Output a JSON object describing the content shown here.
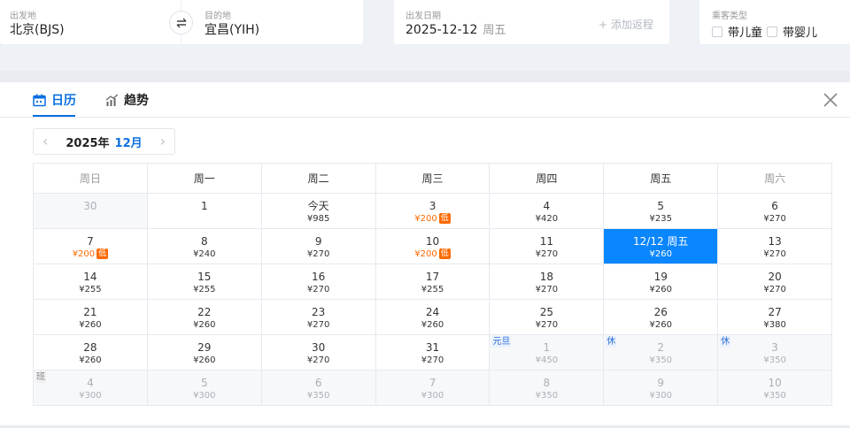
{
  "search": {
    "from_label": "出发地",
    "from_value": "北京(BJS)",
    "to_label": "目的地",
    "to_value": "宜昌(YIH)",
    "date_label": "出发日期",
    "date_value": "2025-12-12",
    "date_weekday": "周五",
    "add_return": "+ 添加返程",
    "passenger_label": "乘客类型",
    "with_child": "带儿童",
    "with_infant": "带婴儿"
  },
  "tabs": {
    "calendar": "日历",
    "trend": "趋势"
  },
  "month_nav": {
    "year": "2025年",
    "month": "12月",
    "prev": "‹",
    "next": "›"
  },
  "weekdays": [
    "周日",
    "周一",
    "周二",
    "周三",
    "周四",
    "周五",
    "周六"
  ],
  "weeks": [
    [
      {
        "day": "30",
        "price": "",
        "other": true
      },
      {
        "day": "1",
        "price": ""
      },
      {
        "day": "今天",
        "price": "¥985"
      },
      {
        "day": "3",
        "price": "¥200",
        "low": true
      },
      {
        "day": "4",
        "price": "¥420"
      },
      {
        "day": "5",
        "price": "¥235"
      },
      {
        "day": "6",
        "price": "¥270"
      }
    ],
    [
      {
        "day": "7",
        "price": "¥200",
        "low": true
      },
      {
        "day": "8",
        "price": "¥240"
      },
      {
        "day": "9",
        "price": "¥270"
      },
      {
        "day": "10",
        "price": "¥200",
        "low": true
      },
      {
        "day": "11",
        "price": "¥270"
      },
      {
        "day": "12/12 周五",
        "price": "¥260",
        "selected": true
      },
      {
        "day": "13",
        "price": "¥270"
      }
    ],
    [
      {
        "day": "14",
        "price": "¥255"
      },
      {
        "day": "15",
        "price": "¥255"
      },
      {
        "day": "16",
        "price": "¥270"
      },
      {
        "day": "17",
        "price": "¥255"
      },
      {
        "day": "18",
        "price": "¥270"
      },
      {
        "day": "19",
        "price": "¥260"
      },
      {
        "day": "20",
        "price": "¥270"
      }
    ],
    [
      {
        "day": "21",
        "price": "¥260"
      },
      {
        "day": "22",
        "price": "¥260"
      },
      {
        "day": "23",
        "price": "¥270"
      },
      {
        "day": "24",
        "price": "¥260"
      },
      {
        "day": "25",
        "price": "¥270"
      },
      {
        "day": "26",
        "price": "¥260"
      },
      {
        "day": "27",
        "price": "¥380"
      }
    ],
    [
      {
        "day": "28",
        "price": "¥260"
      },
      {
        "day": "29",
        "price": "¥260"
      },
      {
        "day": "30",
        "price": "¥270"
      },
      {
        "day": "31",
        "price": "¥270"
      },
      {
        "day": "1",
        "price": "¥450",
        "other": true,
        "tag": "元旦",
        "tagType": "hol"
      },
      {
        "day": "2",
        "price": "¥350",
        "other": true,
        "tag": "休",
        "tagType": "hol"
      },
      {
        "day": "3",
        "price": "¥350",
        "other": true,
        "tag": "休",
        "tagType": "hol"
      }
    ],
    [
      {
        "day": "4",
        "price": "¥300",
        "other": true,
        "tag": "班",
        "tagType": "work"
      },
      {
        "day": "5",
        "price": "¥300",
        "other": true
      },
      {
        "day": "6",
        "price": "¥350",
        "other": true
      },
      {
        "day": "7",
        "price": "¥300",
        "other": true
      },
      {
        "day": "8",
        "price": "¥350",
        "other": true
      },
      {
        "day": "9",
        "price": "¥300",
        "other": true
      },
      {
        "day": "10",
        "price": "¥350",
        "other": true
      }
    ]
  ],
  "low_badge": "低",
  "colors": {
    "accent": "#0a6fe0",
    "selected_bg": "#0a86ff",
    "low_price": "#ff6a00"
  }
}
